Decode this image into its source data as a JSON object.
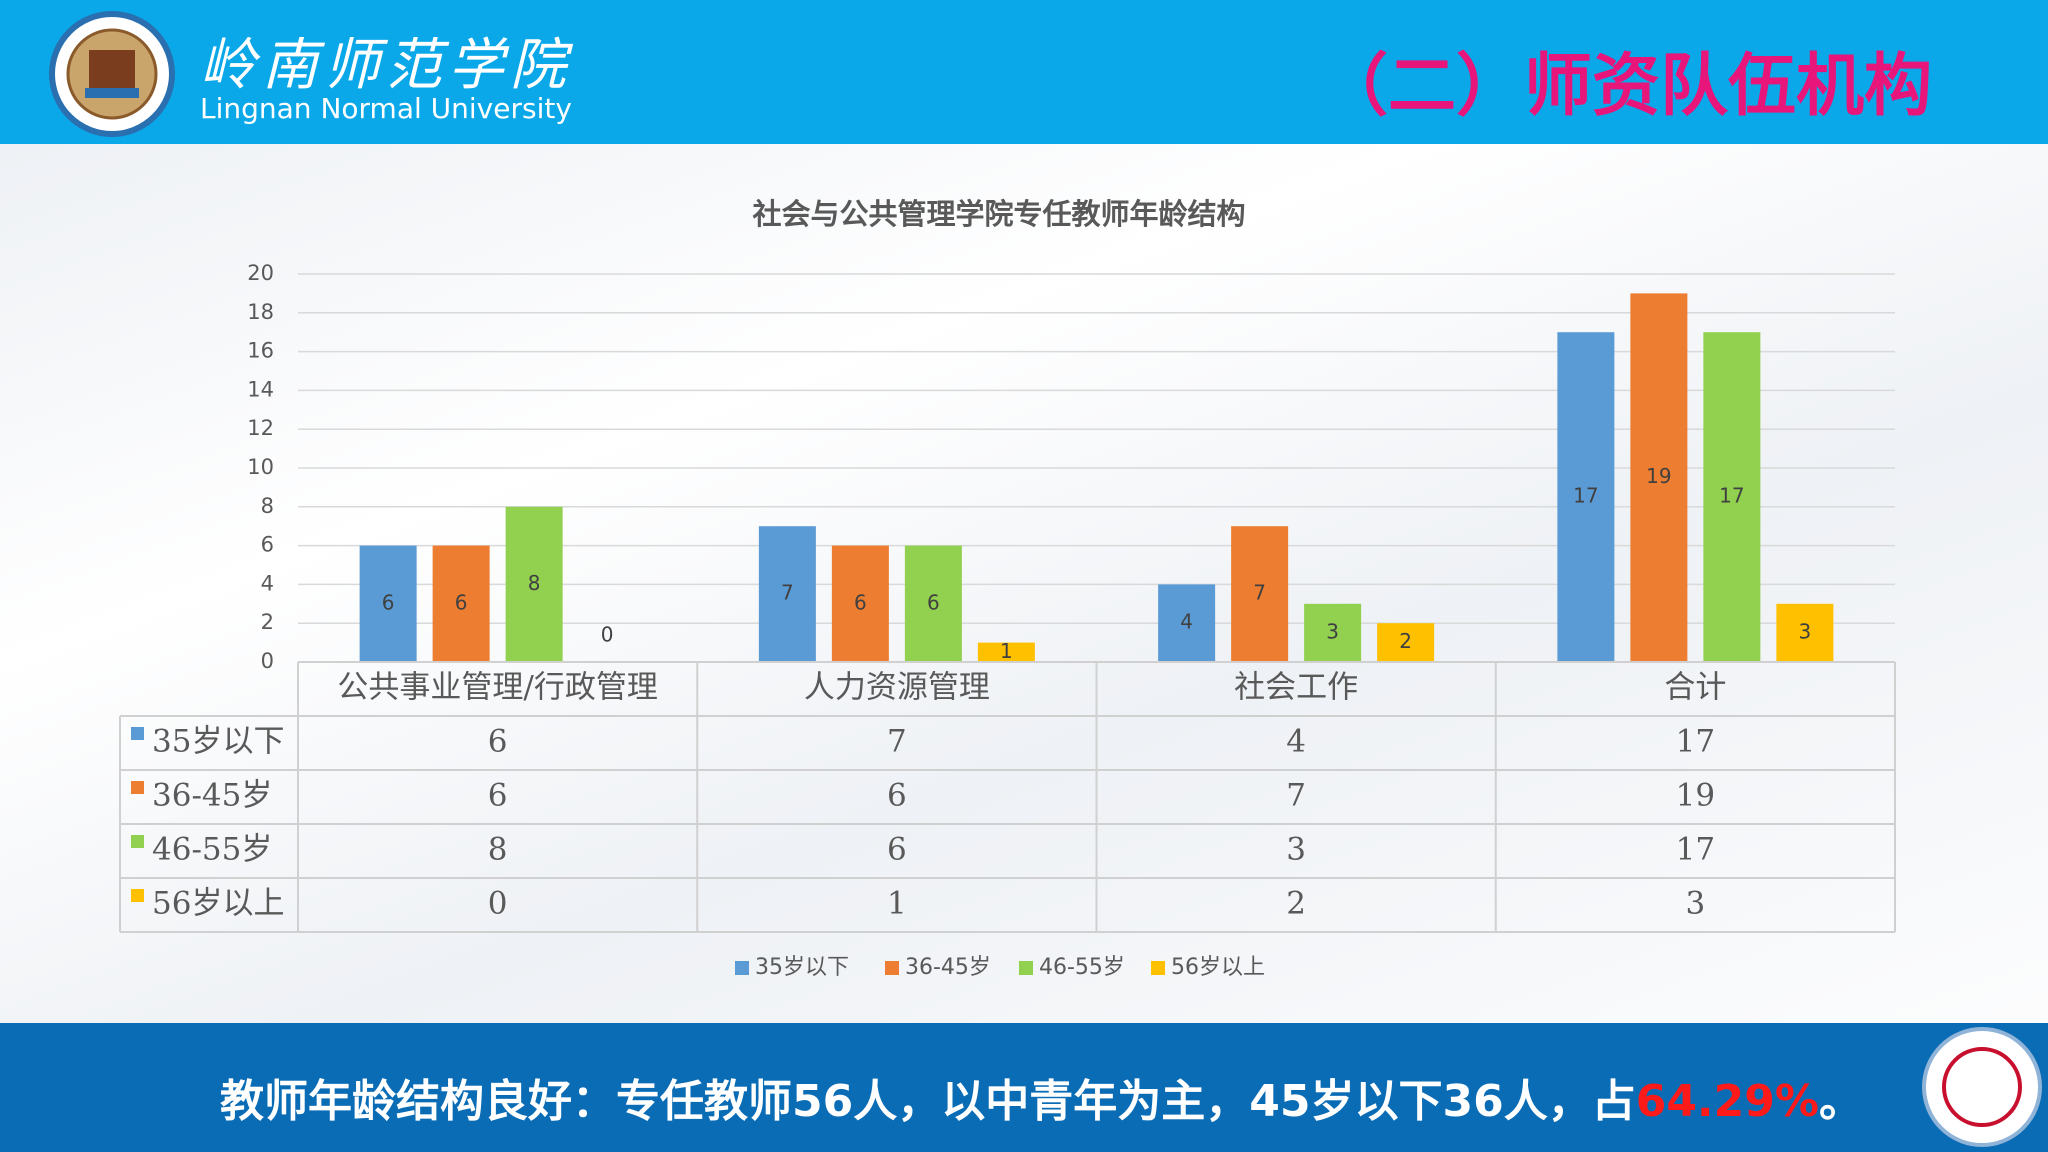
{
  "header": {
    "school_name": "岭南师范学院",
    "school_name_en": "Lingnan Normal University",
    "title": "（二）师资队伍机构"
  },
  "chart_data": {
    "type": "bar",
    "title": "社会与公共管理学院专任教师年龄结构",
    "categories": [
      "公共事业管理/行政管理",
      "人力资源管理",
      "社会工作",
      "合计"
    ],
    "series": [
      {
        "name": "35岁以下",
        "color": "#5b9bd5",
        "values": [
          6,
          7,
          4,
          17
        ]
      },
      {
        "name": "36-45岁",
        "color": "#ed7d31",
        "values": [
          6,
          6,
          7,
          19
        ]
      },
      {
        "name": "46-55岁",
        "color": "#92d050",
        "values": [
          8,
          6,
          3,
          17
        ]
      },
      {
        "name": "56岁以上",
        "color": "#ffc000",
        "values": [
          0,
          1,
          2,
          3
        ]
      }
    ],
    "ylim": [
      0,
      20
    ],
    "yticks": [
      0,
      2,
      4,
      6,
      8,
      10,
      12,
      14,
      16,
      18,
      20
    ],
    "grid": true,
    "legend": "bottom",
    "data_table": true
  },
  "footer": {
    "text": "教师年龄结构良好：专任教师56人，以中青年为主，45岁以下36人，占",
    "highlight": "64.29%",
    "end": "。"
  }
}
